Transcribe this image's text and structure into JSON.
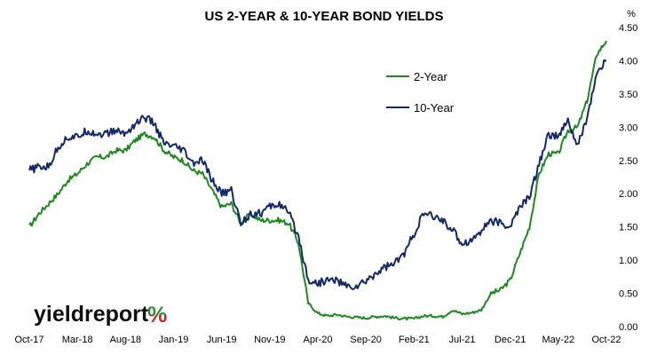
{
  "chart_data": {
    "type": "line",
    "title": "US 2-YEAR & 10-YEAR BOND YIELDS",
    "unit_label": "%",
    "xlabel": "",
    "ylabel": "",
    "x_ticks": [
      "Oct-17",
      "Mar-18",
      "Aug-18",
      "Jan-19",
      "Jun-19",
      "Nov-19",
      "Apr-20",
      "Sep-20",
      "Feb-21",
      "Jul-21",
      "Dec-21",
      "May-22",
      "Oct-22"
    ],
    "y_ticks": [
      "0.00",
      "0.50",
      "1.00",
      "1.50",
      "2.00",
      "2.50",
      "3.00",
      "3.50",
      "4.00",
      "4.50"
    ],
    "ylim": [
      0,
      4.5
    ],
    "y_axis_side": "right",
    "grid": false,
    "legend_position": "upper-right",
    "series": [
      {
        "name": "2-Year",
        "color": "#1e8a1e",
        "x": [
          "2017-10",
          "2017-11",
          "2017-12",
          "2018-01",
          "2018-02",
          "2018-03",
          "2018-04",
          "2018-05",
          "2018-06",
          "2018-07",
          "2018-08",
          "2018-09",
          "2018-10",
          "2018-11",
          "2018-12",
          "2019-01",
          "2019-02",
          "2019-03",
          "2019-04",
          "2019-05",
          "2019-06",
          "2019-07",
          "2019-08",
          "2019-09",
          "2019-10",
          "2019-11",
          "2019-12",
          "2020-01",
          "2020-02",
          "2020-03",
          "2020-04",
          "2020-05",
          "2020-06",
          "2020-07",
          "2020-08",
          "2020-09",
          "2020-10",
          "2020-11",
          "2020-12",
          "2021-01",
          "2021-02",
          "2021-03",
          "2021-04",
          "2021-05",
          "2021-06",
          "2021-07",
          "2021-08",
          "2021-09",
          "2021-10",
          "2021-11",
          "2021-12",
          "2022-01",
          "2022-02",
          "2022-03",
          "2022-04",
          "2022-05",
          "2022-06",
          "2022-07",
          "2022-08",
          "2022-09",
          "2022-10"
        ],
        "values": [
          1.5,
          1.7,
          1.85,
          2.0,
          2.2,
          2.3,
          2.45,
          2.55,
          2.55,
          2.65,
          2.65,
          2.8,
          2.9,
          2.85,
          2.65,
          2.55,
          2.5,
          2.35,
          2.3,
          2.05,
          1.8,
          1.85,
          1.55,
          1.7,
          1.6,
          1.6,
          1.6,
          1.55,
          1.25,
          0.35,
          0.2,
          0.16,
          0.18,
          0.15,
          0.14,
          0.13,
          0.15,
          0.16,
          0.13,
          0.12,
          0.12,
          0.16,
          0.16,
          0.15,
          0.25,
          0.19,
          0.21,
          0.25,
          0.5,
          0.55,
          0.7,
          1.1,
          1.5,
          2.3,
          2.6,
          2.6,
          2.95,
          3.0,
          3.4,
          4.1,
          4.3
        ]
      },
      {
        "name": "10-Year",
        "color": "#14296b",
        "x": [
          "2017-10",
          "2017-11",
          "2017-12",
          "2018-01",
          "2018-02",
          "2018-03",
          "2018-04",
          "2018-05",
          "2018-06",
          "2018-07",
          "2018-08",
          "2018-09",
          "2018-10",
          "2018-11",
          "2018-12",
          "2019-01",
          "2019-02",
          "2019-03",
          "2019-04",
          "2019-05",
          "2019-06",
          "2019-07",
          "2019-08",
          "2019-09",
          "2019-10",
          "2019-11",
          "2019-12",
          "2020-01",
          "2020-02",
          "2020-03",
          "2020-04",
          "2020-05",
          "2020-06",
          "2020-07",
          "2020-08",
          "2020-09",
          "2020-10",
          "2020-11",
          "2020-12",
          "2021-01",
          "2021-02",
          "2021-03",
          "2021-04",
          "2021-05",
          "2021-06",
          "2021-07",
          "2021-08",
          "2021-09",
          "2021-10",
          "2021-11",
          "2021-12",
          "2022-01",
          "2022-02",
          "2022-03",
          "2022-04",
          "2022-05",
          "2022-06",
          "2022-07",
          "2022-08",
          "2022-09",
          "2022-10"
        ],
        "values": [
          2.35,
          2.4,
          2.4,
          2.7,
          2.85,
          2.85,
          2.95,
          2.9,
          2.9,
          2.95,
          2.9,
          3.05,
          3.15,
          3.05,
          2.75,
          2.7,
          2.65,
          2.45,
          2.5,
          2.2,
          2.0,
          2.05,
          1.55,
          1.7,
          1.7,
          1.8,
          1.85,
          1.7,
          1.35,
          0.7,
          0.65,
          0.7,
          0.7,
          0.6,
          0.6,
          0.68,
          0.8,
          0.9,
          0.95,
          1.1,
          1.4,
          1.7,
          1.65,
          1.6,
          1.45,
          1.25,
          1.3,
          1.45,
          1.6,
          1.55,
          1.5,
          1.8,
          1.95,
          2.45,
          2.9,
          2.85,
          3.1,
          2.7,
          3.15,
          3.8,
          4.0
        ]
      }
    ]
  },
  "logo": {
    "text": "yieldreport",
    "symbol": "%"
  }
}
